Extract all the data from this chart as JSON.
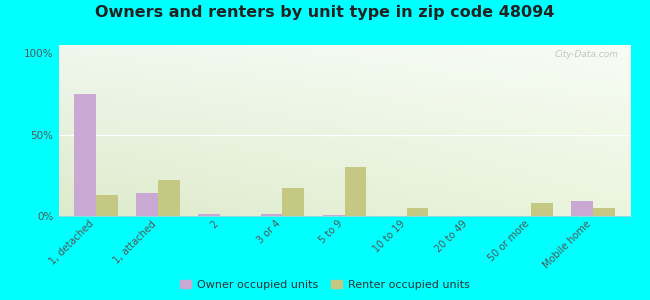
{
  "categories": [
    "1, detached",
    "1, attached",
    "2",
    "3 or 4",
    "5 to 9",
    "10 to 19",
    "20 to 49",
    "50 or more",
    "Mobile home"
  ],
  "owner_values": [
    75,
    14,
    1,
    1.5,
    0.5,
    0,
    0,
    0,
    9
  ],
  "renter_values": [
    13,
    22,
    0,
    17,
    30,
    5,
    0,
    8,
    5
  ],
  "owner_color": "#c9a8d4",
  "renter_color": "#c5c882",
  "title": "Owners and renters by unit type in zip code 48094",
  "title_fontsize": 11.5,
  "ylim": [
    0,
    105
  ],
  "yticks": [
    0,
    50,
    100
  ],
  "ytick_labels": [
    "0%",
    "50%",
    "100%"
  ],
  "background_color": "#00ffff",
  "legend_owner": "Owner occupied units",
  "legend_renter": "Renter occupied units",
  "bar_width": 0.35,
  "watermark": "City-Data.com"
}
